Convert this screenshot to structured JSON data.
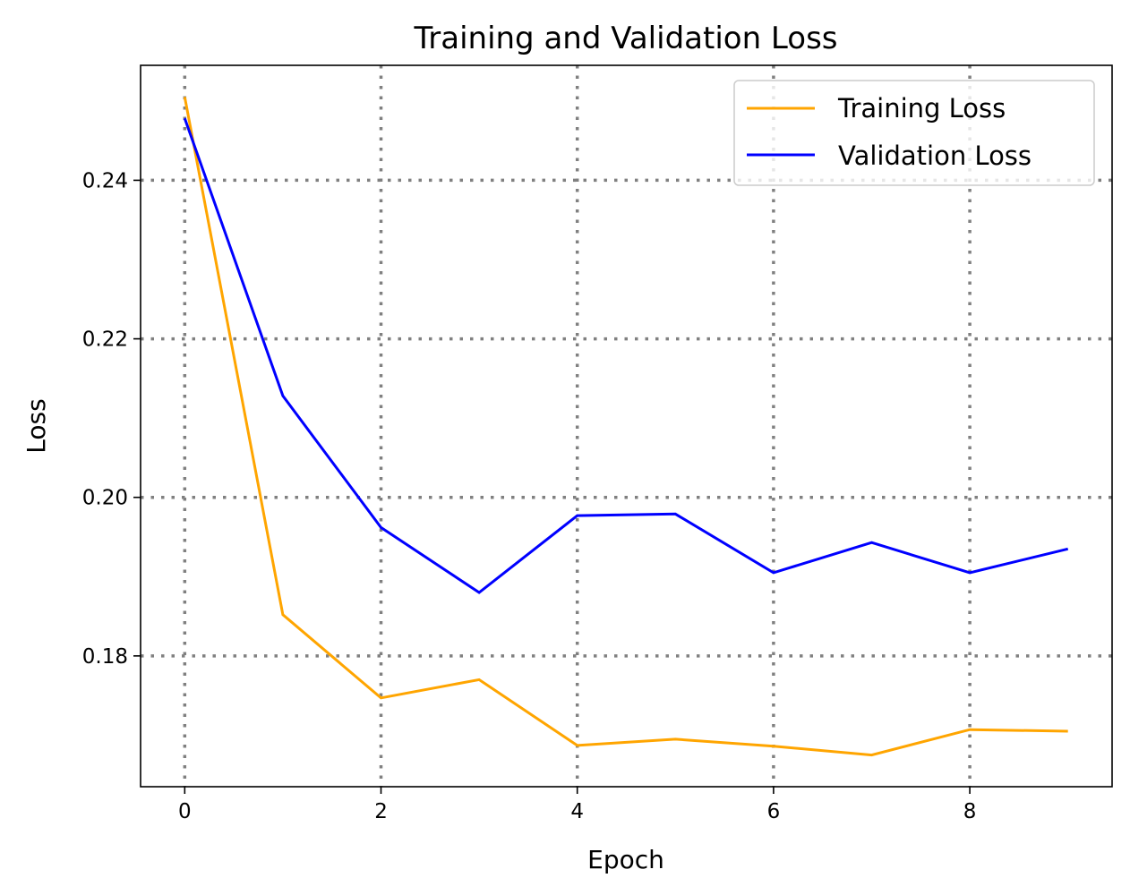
{
  "chart_data": {
    "type": "line",
    "title": "Training and Validation Loss",
    "xlabel": "Epoch",
    "ylabel": "Loss",
    "x": [
      0,
      1,
      2,
      3,
      4,
      5,
      6,
      7,
      8,
      9
    ],
    "xlim": [
      -0.45,
      9.45
    ],
    "ylim": [
      0.1635,
      0.2545
    ],
    "xticks": [
      0,
      2,
      4,
      6,
      8
    ],
    "yticks": [
      0.18,
      0.2,
      0.22,
      0.24
    ],
    "xtick_labels": [
      "0",
      "2",
      "4",
      "6",
      "8"
    ],
    "ytick_labels": [
      "0.18",
      "0.20",
      "0.22",
      "0.24"
    ],
    "grid": true,
    "legend_position": "top-right",
    "series": [
      {
        "name": "Training Loss",
        "color": "#ffa500",
        "values": [
          0.2505,
          0.1852,
          0.1747,
          0.177,
          0.1687,
          0.1695,
          0.1686,
          0.1675,
          0.1707,
          0.1705
        ]
      },
      {
        "name": "Validation Loss",
        "color": "#0000ff",
        "values": [
          0.2478,
          0.2128,
          0.1962,
          0.188,
          0.1977,
          0.1979,
          0.1905,
          0.1943,
          0.1905,
          0.1935
        ]
      }
    ]
  }
}
